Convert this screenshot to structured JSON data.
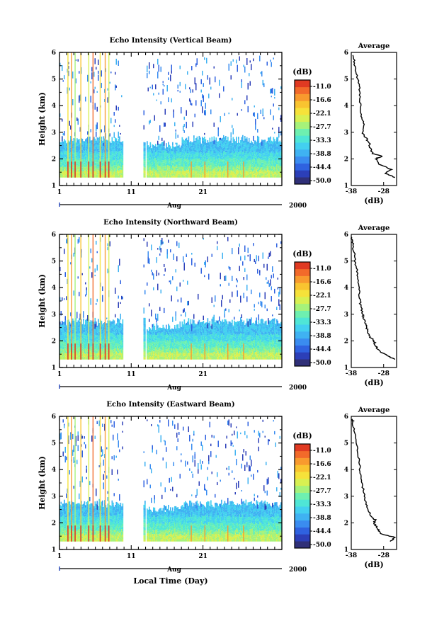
{
  "figure": {
    "xlabel": "Local Time (Day)",
    "month_label": "Aug",
    "year_label": "2000"
  },
  "colorbar": {
    "unit": "(dB)",
    "tick_labels": [
      "-11.0",
      "-16.6",
      "-22.1",
      "-27.7",
      "-33.3",
      "-38.8",
      "-44.4",
      "-50.0"
    ],
    "range": [
      -50.0,
      -11.0
    ],
    "colors": [
      "#303078",
      "#2c3fb8",
      "#2f62e0",
      "#3a8cf0",
      "#3fb2f2",
      "#43d0f0",
      "#4fe6d6",
      "#6ef0b0",
      "#a6f27a",
      "#d8f052",
      "#f6e23a",
      "#f9c430",
      "#f89a2e",
      "#f26a2a",
      "#e03a22"
    ]
  },
  "chart_data": [
    {
      "type": "heatmap",
      "title": "Echo Intensity (Vertical Beam)",
      "xlabel": "Local Time (Day)",
      "ylabel": "Height (km)",
      "xlim": [
        1,
        32
      ],
      "ylim": [
        1,
        6
      ],
      "x_tick_labels": [
        "1",
        "11",
        "21"
      ],
      "y_tick_labels": [
        "1",
        "2",
        "3",
        "4",
        "5",
        "6"
      ],
      "cmin": -50.0,
      "cmax": -11.0,
      "data_gaps_days": [
        [
          9.8,
          12.6
        ],
        [
          12.9,
          13.0
        ]
      ],
      "profile": {
        "title": "Average",
        "xlabel": "(dB)",
        "xlim": [
          -38,
          -24
        ],
        "x_tick_labels": [
          "-38",
          "-28"
        ],
        "height_km": [
          1.3,
          1.45,
          1.6,
          1.8,
          2.0,
          2.1,
          2.2,
          2.4,
          2.6,
          2.8,
          3.0,
          3.3,
          3.6,
          4.0,
          4.4,
          4.8,
          5.2,
          5.6,
          5.9
        ],
        "power_db": [
          -24.5,
          -27.5,
          -25.5,
          -29.5,
          -30.5,
          -28.5,
          -31.5,
          -32.0,
          -32.5,
          -33.5,
          -34.5,
          -34.0,
          -35.0,
          -35.0,
          -35.5,
          -35.5,
          -36.5,
          -37.0,
          -37.5
        ]
      }
    },
    {
      "type": "heatmap",
      "title": "Echo Intensity (Northward Beam)",
      "xlabel": "Local Time (Day)",
      "ylabel": "Height (km)",
      "xlim": [
        1,
        32
      ],
      "ylim": [
        1,
        6
      ],
      "x_tick_labels": [
        "1",
        "11",
        "21"
      ],
      "y_tick_labels": [
        "1",
        "2",
        "3",
        "4",
        "5",
        "6"
      ],
      "cmin": -50.0,
      "cmax": -11.0,
      "data_gaps_days": [
        [
          9.8,
          12.6
        ],
        [
          12.9,
          13.0
        ]
      ],
      "profile": {
        "title": "Average",
        "xlabel": "(dB)",
        "xlim": [
          -38,
          -24
        ],
        "x_tick_labels": [
          "-38",
          "-28"
        ],
        "height_km": [
          1.3,
          1.45,
          1.6,
          1.8,
          2.0,
          2.2,
          2.4,
          2.6,
          2.8,
          3.0,
          3.3,
          3.6,
          4.0,
          4.4,
          4.8,
          5.2,
          5.6,
          5.9
        ],
        "power_db": [
          -24.5,
          -27.0,
          -29.0,
          -30.5,
          -31.0,
          -32.5,
          -33.0,
          -33.5,
          -34.0,
          -34.5,
          -35.0,
          -35.5,
          -35.5,
          -36.0,
          -36.5,
          -37.0,
          -37.5,
          -37.8
        ]
      }
    },
    {
      "type": "heatmap",
      "title": "Echo Intensity (Eastward Beam)",
      "xlabel": "Local Time (Day)",
      "ylabel": "Height (km)",
      "xlim": [
        1,
        32
      ],
      "ylim": [
        1,
        6
      ],
      "x_tick_labels": [
        "1",
        "11",
        "21"
      ],
      "y_tick_labels": [
        "1",
        "2",
        "3",
        "4",
        "5",
        "6"
      ],
      "cmin": -50.0,
      "cmax": -11.0,
      "data_gaps_days": [
        [
          9.8,
          12.6
        ],
        [
          12.9,
          13.0
        ]
      ],
      "profile": {
        "title": "Average",
        "xlabel": "(dB)",
        "xlim": [
          -38,
          -24
        ],
        "x_tick_labels": [
          "-38",
          "-28"
        ],
        "height_km": [
          1.3,
          1.45,
          1.6,
          1.8,
          2.0,
          2.1,
          2.2,
          2.4,
          2.7,
          3.0,
          3.4,
          3.8,
          4.2,
          4.6,
          5.0,
          5.4,
          5.8,
          5.9
        ],
        "power_db": [
          -26.0,
          -24.5,
          -29.0,
          -30.0,
          -31.0,
          -30.5,
          -31.5,
          -32.5,
          -33.5,
          -34.0,
          -34.5,
          -35.0,
          -35.5,
          -36.0,
          -36.5,
          -37.0,
          -37.5,
          -37.8
        ]
      }
    }
  ]
}
